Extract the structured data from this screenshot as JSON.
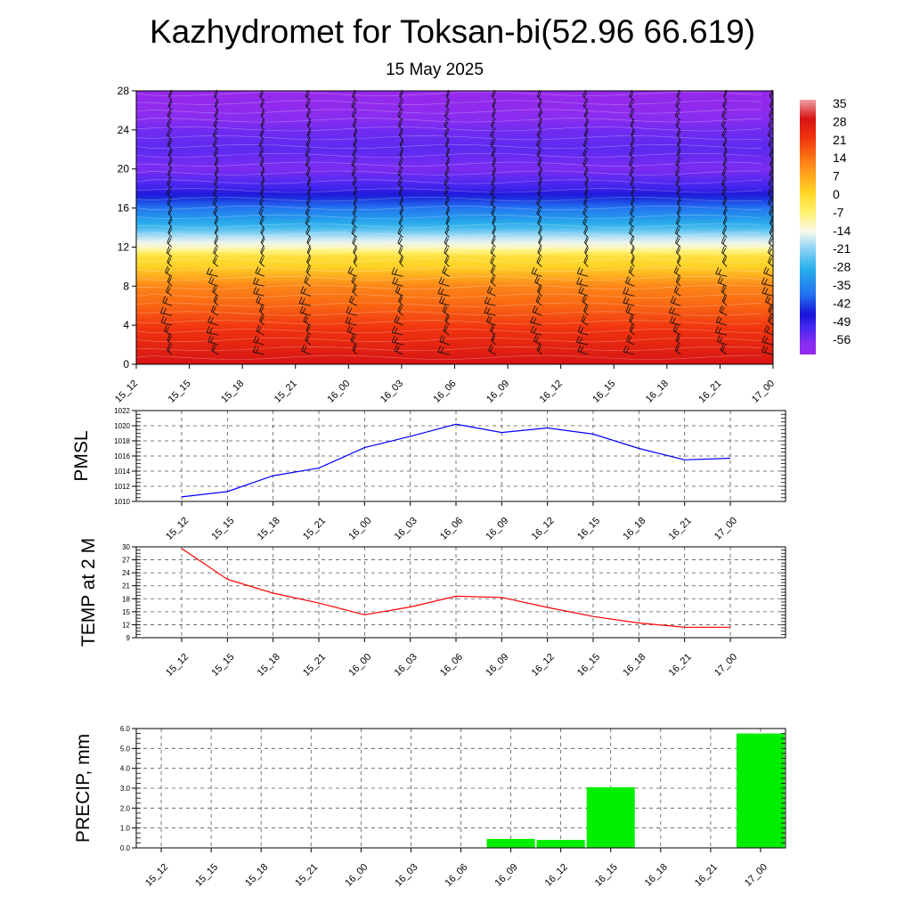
{
  "page": {
    "title": "Kazhydromet for Toksan-bi(52.96 66.619)",
    "subtitle": "15 May 2025"
  },
  "times": [
    "15_12",
    "15_15",
    "15_18",
    "15_21",
    "16_00",
    "16_03",
    "16_06",
    "16_09",
    "16_12",
    "16_15",
    "16_18",
    "16_21",
    "17_00"
  ],
  "colorbar": {
    "labels": [
      "35",
      "28",
      "21",
      "14",
      "7",
      "0",
      "-7",
      "-14",
      "-21",
      "-28",
      "-35",
      "-42",
      "-49",
      "-56"
    ]
  },
  "chart_data": [
    {
      "type": "heatmap",
      "name": "cross-section",
      "categories": [
        "15_12",
        "15_15",
        "15_18",
        "15_21",
        "16_00",
        "16_03",
        "16_06",
        "16_09",
        "16_12",
        "16_15",
        "16_18",
        "16_21",
        "17_00"
      ],
      "y_ticks": [
        "0",
        "4",
        "8",
        "12",
        "16",
        "20",
        "24",
        "28"
      ],
      "ylim": [
        0,
        28
      ],
      "color_range": [
        -56,
        35
      ],
      "profile": [
        {
          "h": 0,
          "v": 28
        },
        {
          "h": 2,
          "v": 24
        },
        {
          "h": 4,
          "v": 20
        },
        {
          "h": 6,
          "v": 15
        },
        {
          "h": 8,
          "v": 11
        },
        {
          "h": 10,
          "v": 1
        },
        {
          "h": 11,
          "v": -2
        },
        {
          "h": 12,
          "v": -12
        },
        {
          "h": 13,
          "v": -18
        },
        {
          "h": 14,
          "v": -26
        },
        {
          "h": 16,
          "v": -37
        },
        {
          "h": 18,
          "v": -49
        },
        {
          "h": 20,
          "v": -55
        },
        {
          "h": 22,
          "v": -52
        },
        {
          "h": 24,
          "v": -54
        },
        {
          "h": 26,
          "v": -58
        },
        {
          "h": 28,
          "v": -60
        }
      ],
      "grid": false
    },
    {
      "type": "line",
      "name": "pmsl",
      "ylabel": "PMSL",
      "categories": [
        "15_12",
        "15_15",
        "15_18",
        "15_21",
        "16_00",
        "16_03",
        "16_06",
        "16_09",
        "16_12",
        "16_15",
        "16_18",
        "16_21",
        "17_00"
      ],
      "y_ticks": [
        "1010",
        "1012",
        "1014",
        "1016",
        "1018",
        "1020",
        "1022"
      ],
      "ylim": [
        1010,
        1022
      ],
      "values": [
        1010.6,
        1011.3,
        1013.4,
        1014.4,
        1017.1,
        1018.6,
        1020.2,
        1019.1,
        1019.7,
        1018.9,
        1017.0,
        1015.5,
        1015.7
      ],
      "color": "#0000ff",
      "grid": true
    },
    {
      "type": "line",
      "name": "temp",
      "ylabel": "TEMP at 2 M",
      "categories": [
        "15_12",
        "15_15",
        "15_18",
        "15_21",
        "16_00",
        "16_03",
        "16_06",
        "16_09",
        "16_12",
        "16_15",
        "16_18",
        "16_21",
        "17_00"
      ],
      "y_ticks": [
        "9",
        "12",
        "15",
        "18",
        "21",
        "24",
        "27",
        "30"
      ],
      "ylim": [
        9,
        30
      ],
      "values": [
        29.6,
        22.5,
        19.3,
        17.0,
        14.3,
        16.1,
        18.6,
        18.3,
        16.0,
        13.9,
        12.4,
        11.4,
        11.4
      ],
      "color": "#ff0000",
      "grid": true
    },
    {
      "type": "bar",
      "name": "precip",
      "ylabel": "PRECIP, mm",
      "categories": [
        "15_12",
        "15_15",
        "15_18",
        "15_21",
        "16_00",
        "16_03",
        "16_06",
        "16_09",
        "16_12",
        "16_15",
        "16_18",
        "16_21",
        "17_00"
      ],
      "y_ticks": [
        "0.0",
        "1.0",
        "2.0",
        "3.0",
        "4.0",
        "5.0",
        "6.0"
      ],
      "ylim": [
        0,
        6
      ],
      "values": [
        0,
        0,
        0,
        0,
        0,
        0,
        0,
        0.45,
        0.4,
        3.05,
        0,
        0,
        5.75
      ],
      "color": "#00ee00",
      "grid": true
    }
  ]
}
